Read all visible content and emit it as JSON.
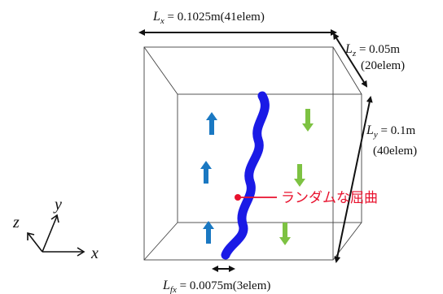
{
  "dimensions": {
    "lx": {
      "var": "L",
      "sub": "x",
      "value": " = 0.1025m(41elem)"
    },
    "lz": {
      "var": "L",
      "sub": "z",
      "value": " = 0.05m",
      "elem": "(20elem)"
    },
    "ly": {
      "var": "L",
      "sub": "y",
      "value": " = 0.1m",
      "elem": "(40elem)"
    },
    "lfx": {
      "var": "L",
      "sub": "fx",
      "value": " = 0.0075m(3elem)"
    }
  },
  "annotation": {
    "text": "ランダムな屈曲",
    "color": "#e8112d"
  },
  "axes": {
    "x": "x",
    "y": "y",
    "z": "z"
  },
  "colors": {
    "fracture": "#1a1ae6",
    "up_arrow": "#1a78c2",
    "down_arrow": "#7dc242",
    "box": "#444444",
    "dim_arrow": "#111111"
  }
}
